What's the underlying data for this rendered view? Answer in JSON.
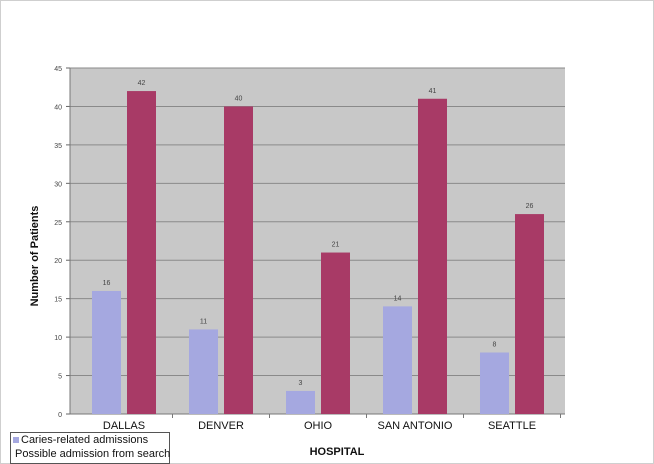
{
  "chart_data": {
    "type": "bar",
    "categories": [
      "DALLAS",
      "DENVER",
      "OHIO",
      "SAN ANTONIO",
      "SEATTLE"
    ],
    "series": [
      {
        "name": "Caries-related admissions",
        "values": [
          16,
          11,
          3,
          14,
          8
        ],
        "color": "#a5a8e0"
      },
      {
        "name": "Possible admission from search",
        "values": [
          42,
          40,
          21,
          41,
          26
        ],
        "color": "#a83a66"
      }
    ],
    "data_labels": [
      [
        "16",
        "11",
        "3",
        "14",
        "8"
      ],
      [
        "42",
        "40",
        "21",
        "41",
        "26"
      ]
    ],
    "yticks": [
      "0",
      "5",
      "10",
      "15",
      "20",
      "25",
      "30",
      "35",
      "40",
      "45"
    ],
    "xlabel": "HOSPITAL",
    "ylabel": "Number of Patients",
    "ylim": [
      0,
      45
    ],
    "grid": true,
    "legend_position": "bottom-left",
    "plot_background": "#c8c8c8"
  }
}
